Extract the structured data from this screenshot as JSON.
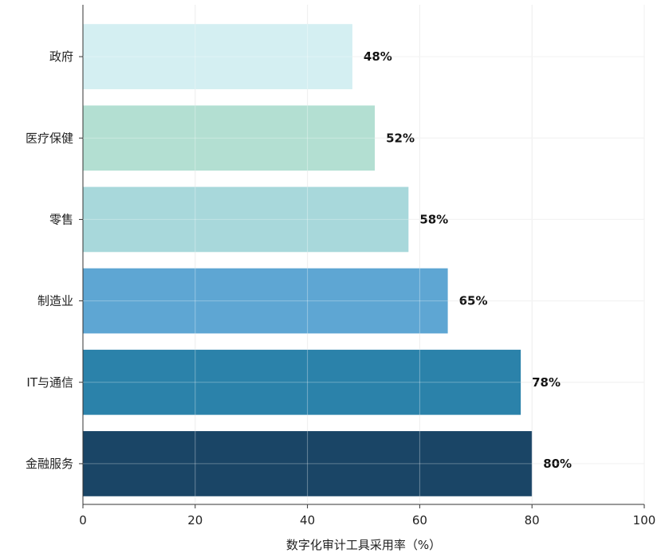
{
  "chart_data": {
    "type": "bar",
    "orientation": "horizontal",
    "categories": [
      "政府",
      "医疗保健",
      "零售",
      "制造业",
      "IT与通信",
      "金融服务"
    ],
    "values": [
      48,
      52,
      58,
      65,
      78,
      80
    ],
    "value_labels": [
      "48%",
      "52%",
      "58%",
      "65%",
      "78%",
      "80%"
    ],
    "colors": [
      "#d4eff2",
      "#b3dfd2",
      "#a8d8db",
      "#5ea6d3",
      "#2b82aa",
      "#1a4566"
    ],
    "title": "",
    "xlabel": "数字化审计工具采用率（%）",
    "ylabel": "",
    "xlim": [
      0,
      100
    ],
    "xticks": [
      0,
      20,
      40,
      60,
      80,
      100
    ],
    "xtick_labels": [
      "0",
      "20",
      "40",
      "60",
      "80",
      "100"
    ],
    "grid": true,
    "legend": "none"
  }
}
